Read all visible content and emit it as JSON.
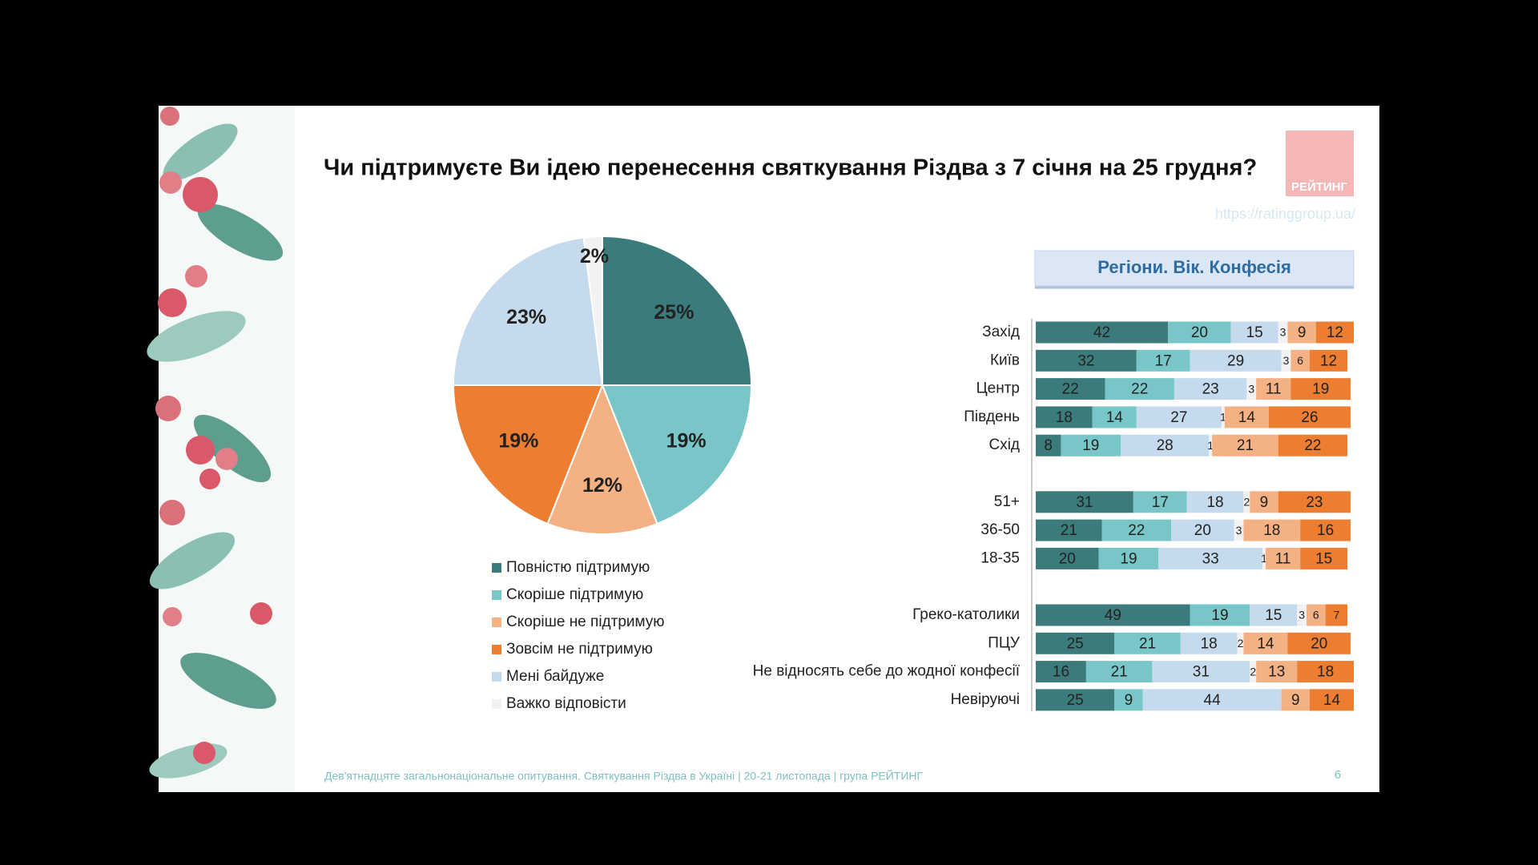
{
  "slide": {
    "logo": "РЕЙТИНГ",
    "url": "https://ratinggroup.ua/",
    "footer": "Дев'ятнадцяте загальнонаціональне опитування. Святкування Різдва в Україні | 20-21 листопада | група РЕЙТИНГ",
    "page": "6"
  },
  "chart_data": [
    {
      "type": "pie",
      "title": "Чи підтримуєте Ви ідею перенесення святкування Різдва з 7 січня на 25 грудня?",
      "categories": [
        "Повністю підтримую",
        "Скоріше підтримую",
        "Скоріше не підтримую",
        "Зовсім не підтримую",
        "Мені байдуже",
        "Важко відповісти"
      ],
      "values": [
        25,
        19,
        12,
        19,
        23,
        2
      ],
      "value_labels": [
        "25%",
        "19%",
        "12%",
        "19%",
        "23%",
        "2%"
      ],
      "colors": [
        "#3b7b7b",
        "#79c6c8",
        "#f4b183",
        "#ed7d31",
        "#c6daee",
        "#f2f2f2"
      ]
    },
    {
      "type": "bar",
      "orientation": "horizontal",
      "stacked": true,
      "title": "Регіони. Вік. Конфесія",
      "categories": [
        "Захід",
        "Київ",
        "Центр",
        "Південь",
        "Схід",
        null,
        "51+",
        "36-50",
        "18-35",
        null,
        "Греко-католики",
        "ПЦУ",
        "Не відносять себе до жодної конфесії",
        "Невіруючі"
      ],
      "xlim": [
        0,
        101
      ],
      "series": [
        {
          "color": "#3b7b7b",
          "values": [
            42,
            32,
            22,
            18,
            8,
            null,
            31,
            21,
            20,
            null,
            49,
            25,
            16,
            25
          ]
        },
        {
          "color": "#79c6c8",
          "values": [
            20,
            17,
            22,
            14,
            19,
            null,
            17,
            22,
            19,
            null,
            19,
            21,
            21,
            9
          ]
        },
        {
          "color": "#c6daee",
          "values": [
            15,
            29,
            23,
            27,
            28,
            null,
            18,
            20,
            33,
            null,
            15,
            18,
            31,
            44
          ]
        },
        {
          "color": "#f2f2f2",
          "values": [
            3,
            3,
            3,
            1,
            1,
            null,
            2,
            3,
            1,
            null,
            3,
            2,
            2,
            null
          ]
        },
        {
          "color": "#f4b183",
          "values": [
            9,
            6,
            11,
            14,
            21,
            null,
            9,
            18,
            11,
            null,
            6,
            14,
            13,
            9
          ]
        },
        {
          "color": "#ed7d31",
          "values": [
            12,
            12,
            19,
            26,
            22,
            null,
            23,
            16,
            15,
            null,
            7,
            20,
            18,
            14
          ]
        }
      ]
    }
  ]
}
